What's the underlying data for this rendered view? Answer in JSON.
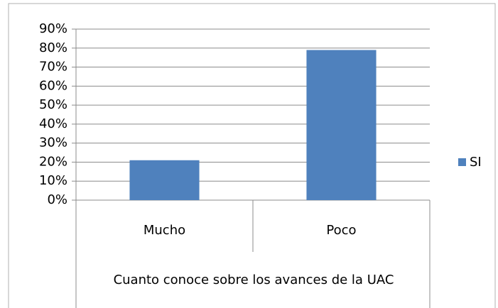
{
  "chart_data": {
    "type": "bar",
    "categories": [
      "Mucho",
      "Poco"
    ],
    "series": [
      {
        "name": "SI",
        "color": "#4f81bd",
        "values": [
          21,
          79
        ]
      }
    ],
    "xlabel": "Cuanto conoce sobre los avances de la UAC",
    "ylim": [
      0,
      90
    ],
    "yticks": [
      {
        "value": 0,
        "label": "0%"
      },
      {
        "value": 10,
        "label": "10%"
      },
      {
        "value": 20,
        "label": "20%"
      },
      {
        "value": 30,
        "label": "30%"
      },
      {
        "value": 40,
        "label": "40%"
      },
      {
        "value": 50,
        "label": "50%"
      },
      {
        "value": 60,
        "label": "60%"
      },
      {
        "value": 70,
        "label": "70%"
      },
      {
        "value": 80,
        "label": "80%"
      },
      {
        "value": 90,
        "label": "90%"
      }
    ],
    "grid": true,
    "legend": "right"
  }
}
